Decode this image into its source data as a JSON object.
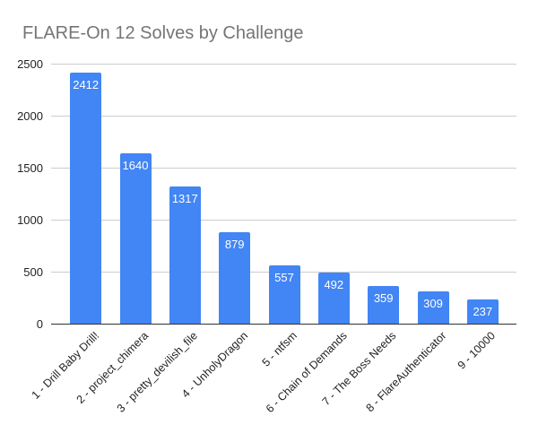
{
  "chart_data": {
    "type": "bar",
    "title": "FLARE-On 12 Solves by Challenge",
    "categories": [
      "1 - Drill Baby Drill!",
      "2 - project_chimera",
      "3 - pretty_devilish_file",
      "4 - UnholyDragon",
      "5 - ntfsm",
      "6 - Chain of Demands",
      "7 - The Boss Needs",
      "8 - FlareAuthenticator",
      "9 - 10000"
    ],
    "values": [
      2412,
      1640,
      1317,
      879,
      557,
      492,
      359,
      309,
      237
    ],
    "value_labels": [
      "2412",
      "1640",
      "1317",
      "879",
      "557",
      "492",
      "359",
      "309",
      "237"
    ],
    "xlabel": "",
    "ylabel": "",
    "ylim": [
      0,
      2500
    ],
    "yticks": [
      0,
      500,
      1000,
      1500,
      2000,
      2500
    ],
    "grid": true,
    "legend": "none",
    "colors": {
      "bar": "#4285f4",
      "value_label": "#ffffff",
      "title": "#757575",
      "gridline": "#cccccc",
      "axis_line": "#333333",
      "tick_text": "#222222",
      "background": "#ffffff"
    }
  }
}
